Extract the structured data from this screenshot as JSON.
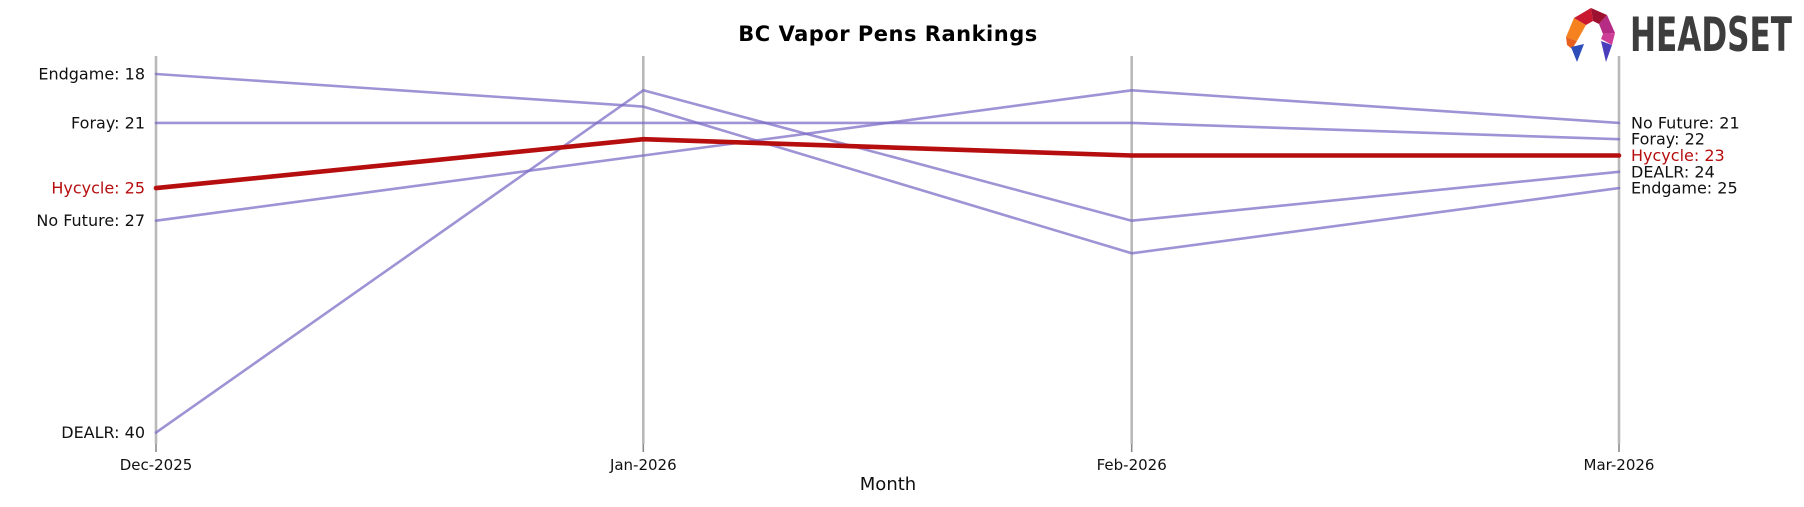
{
  "chart_data": {
    "type": "line",
    "title": "BC Vapor Pens Rankings",
    "xlabel": "Month",
    "x_categories": [
      "Dec-2025",
      "Jan-2026",
      "Feb-2026",
      "Mar-2026"
    ],
    "y_axis": "product rank (inverted: lower rank number plotted higher; no y tick labels shown)",
    "grid": "vertical gridline at each month, no horizontal gridlines",
    "legend": "none (series labeled directly at line start and end)",
    "series": [
      {
        "name": "Endgame",
        "values": [
          18,
          20,
          29,
          25
        ],
        "color": "#7a6ac5",
        "highlight": false,
        "label_left": "Endgame: 18",
        "label_right": "Endgame: 25"
      },
      {
        "name": "Foray",
        "values": [
          21,
          21,
          21,
          22
        ],
        "color": "#7a6ac5",
        "highlight": false,
        "label_left": "Foray: 21",
        "label_right": "Foray: 22"
      },
      {
        "name": "Hycycle",
        "values": [
          25,
          22,
          23,
          23
        ],
        "color": "#b60d0e",
        "highlight": true,
        "label_left": "Hycycle: 25",
        "label_right": "Hycycle: 23"
      },
      {
        "name": "No Future",
        "values": [
          27,
          23,
          19,
          21
        ],
        "color": "#7a6ac5",
        "highlight": false,
        "label_left": "No Future: 27",
        "label_right": "No Future: 21"
      },
      {
        "name": "DEALR",
        "values": [
          40,
          19,
          27,
          24
        ],
        "color": "#7a6ac5",
        "highlight": false,
        "label_left": "DEALR: 40",
        "label_right": "DEALR: 24"
      }
    ]
  },
  "brand": {
    "wordmark": "HEADSET",
    "icon": "headset-faceted-polygon-mark",
    "icon_colors": [
      "#f5821f",
      "#e8601d",
      "#c9182f",
      "#9c1030",
      "#b62b83",
      "#cf3e96",
      "#2f4db8",
      "#4a3dbb"
    ],
    "text_color": "#3d3d3d"
  },
  "colors": {
    "highlight_red": "#b60d0e",
    "line_purple": "#7a6ac5",
    "axis_gray": "#b9b9b9",
    "tick_gray": "#8a8a8a",
    "text_black": "#111111",
    "background": "#ffffff"
  }
}
